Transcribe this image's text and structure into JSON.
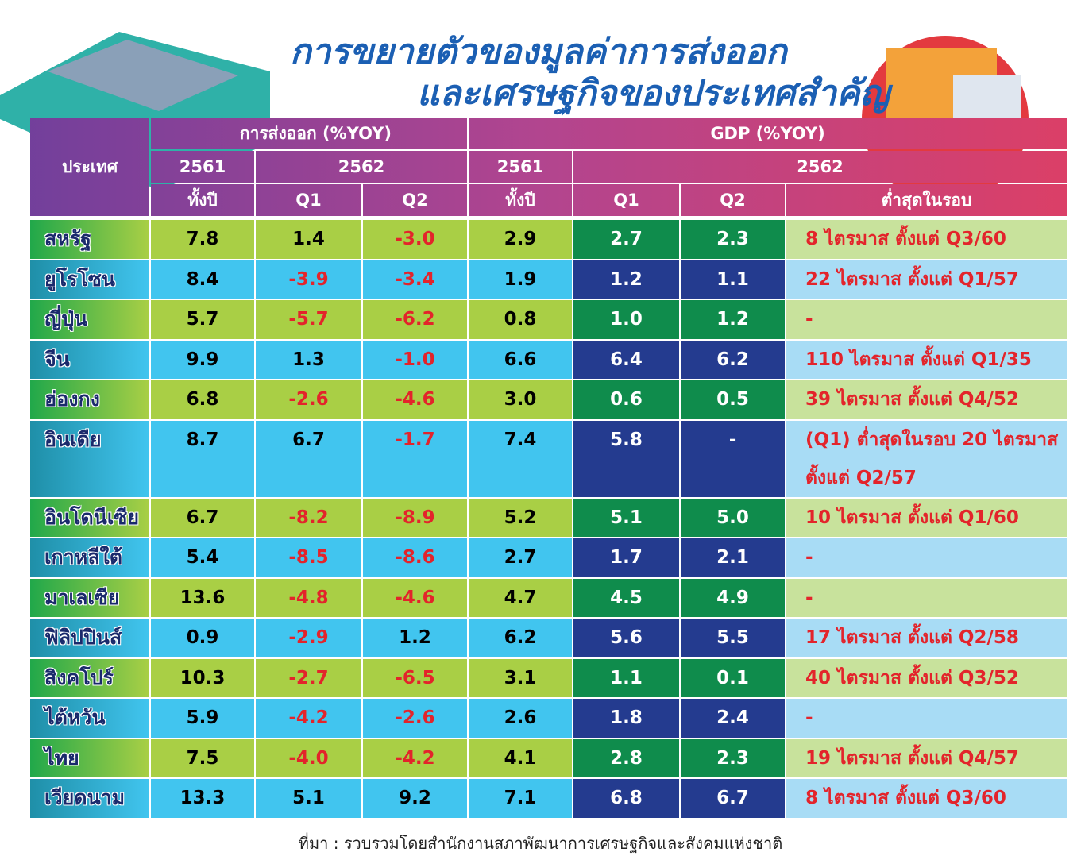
{
  "title": [
    "การขยายตัวของมูลค่าการส่งออก",
    "และเศรษฐกิจของประเทศสำคัญ"
  ],
  "table": {
    "headers": {
      "country": "ประเทศ",
      "exports": {
        "label": "การส่งออก (%YOY)",
        "year_a": "2561",
        "year_b": "2562",
        "full_year": "ทั้งปี",
        "q1": "Q1",
        "q2": "Q2"
      },
      "gdp": {
        "label": "GDP (%YOY)",
        "year_a": "2561",
        "year_b": "2562",
        "full_year": "ทั้งปี",
        "q1": "Q1",
        "q2": "Q2",
        "lowest": "ต่ำสุดในรอบ"
      }
    },
    "rows": [
      [
        "สหรัฐ",
        "7.8",
        "1.4",
        "-3.0",
        "2.9",
        "2.7",
        "2.3",
        "8 ไตรมาส ตั้งแต่ Q3/60"
      ],
      [
        "ยูโรโซน",
        "8.4",
        "-3.9",
        "-3.4",
        "1.9",
        "1.2",
        "1.1",
        "22 ไตรมาส ตั้งแต่ Q1/57"
      ],
      [
        "ญี่ปุ่น",
        "5.7",
        "-5.7",
        "-6.2",
        "0.8",
        "1.0",
        "1.2",
        "-"
      ],
      [
        "จีน",
        "9.9",
        "1.3",
        "-1.0",
        "6.6",
        "6.4",
        "6.2",
        "110 ไตรมาส ตั้งแต่ Q1/35"
      ],
      [
        "ฮ่องกง",
        "6.8",
        "-2.6",
        "-4.6",
        "3.0",
        "0.6",
        "0.5",
        "39 ไตรมาส ตั้งแต่ Q4/52"
      ],
      [
        "อินเดีย",
        "8.7",
        "6.7",
        "-1.7",
        "7.4",
        "5.8",
        "-",
        "(Q1) ต่ำสุดในรอบ 20 ไตรมาส ตั้งแต่ Q2/57"
      ],
      [
        "อินโดนีเซีย",
        "6.7",
        "-8.2",
        "-8.9",
        "5.2",
        "5.1",
        "5.0",
        "10 ไตรมาส ตั้งแต่ Q1/60"
      ],
      [
        "เกาหลีใต้",
        "5.4",
        "-8.5",
        "-8.6",
        "2.7",
        "1.7",
        "2.1",
        "-"
      ],
      [
        "มาเลเซีย",
        "13.6",
        "-4.8",
        "-4.6",
        "4.7",
        "4.5",
        "4.9",
        "-"
      ],
      [
        "ฟิลิปปินส์",
        "0.9",
        "-2.9",
        "1.2",
        "6.2",
        "5.6",
        "5.5",
        "17 ไตรมาส ตั้งแต่ Q2/58"
      ],
      [
        "สิงคโปร์",
        "10.3",
        "-2.7",
        "-6.5",
        "3.1",
        "1.1",
        "0.1",
        "40 ไตรมาส ตั้งแต่ Q3/52"
      ],
      [
        "ไต้หวัน",
        "5.9",
        "-4.2",
        "-2.6",
        "2.6",
        "1.8",
        "2.4",
        "-"
      ],
      [
        "ไทย",
        "7.5",
        "-4.0",
        "-4.2",
        "4.1",
        "2.8",
        "2.3",
        "19 ไตรมาส ตั้งแต่ Q4/57"
      ],
      [
        "เวียดนาม",
        "13.3",
        "5.1",
        "9.2",
        "7.1",
        "6.8",
        "6.7",
        "8 ไตรมาส ตั้งแต่ Q3/60"
      ]
    ]
  },
  "source": "ที่มา : รวบรวมโดยสำนักงานสภาพัฒนาการเศรษฐกิจและสังคมแห่งชาติ"
}
